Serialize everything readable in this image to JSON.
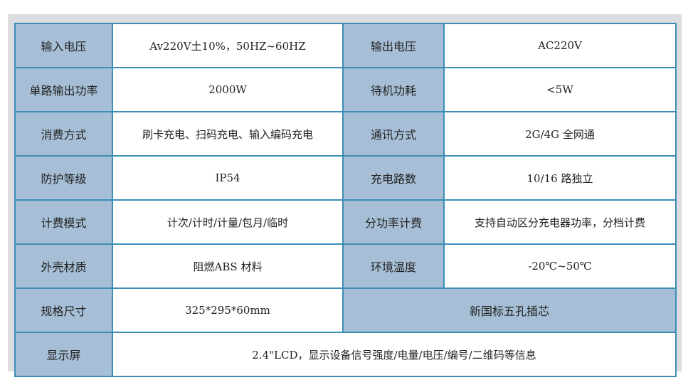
{
  "colors": {
    "header_bg": "#a6bfd6",
    "border": "#3b8db6",
    "frame_bg": "#dcdce1"
  },
  "rows": [
    {
      "k1": "输入电压",
      "v1": "Av220V土10%，50HZ~60HZ",
      "k2": "输出电压",
      "v2": "AC220V"
    },
    {
      "k1": "单路输出功率",
      "v1": "2000W",
      "k2": "待机功耗",
      "v2": "<5W"
    },
    {
      "k1": "消费方式",
      "v1": "刷卡充电、扫码充电、输入编码充电",
      "k2": "通讯方式",
      "v2": "2G/4G 全网通"
    },
    {
      "k1": "防护等级",
      "v1": "IP54",
      "k2": "充电路数",
      "v2": "10/16 路独立"
    },
    {
      "k1": "计费模式",
      "v1": "计次/计时/计量/包月/临时",
      "k2": "分功率计费",
      "v2": "支持自动区分充电器功率，分档计费"
    },
    {
      "k1": "外壳材质",
      "v1": "阻燃ABS 材料",
      "k2": "环境温度",
      "v2": "-20℃~50℃"
    },
    {
      "k1": "规格尺寸",
      "v1": "325*295*60mm",
      "k2": "新国标五孔插芯"
    },
    {
      "k1": "显示屏",
      "v1": "2.4\"LCD，显示设备信号强度/电量/电压/编号/二维码等信息"
    }
  ]
}
